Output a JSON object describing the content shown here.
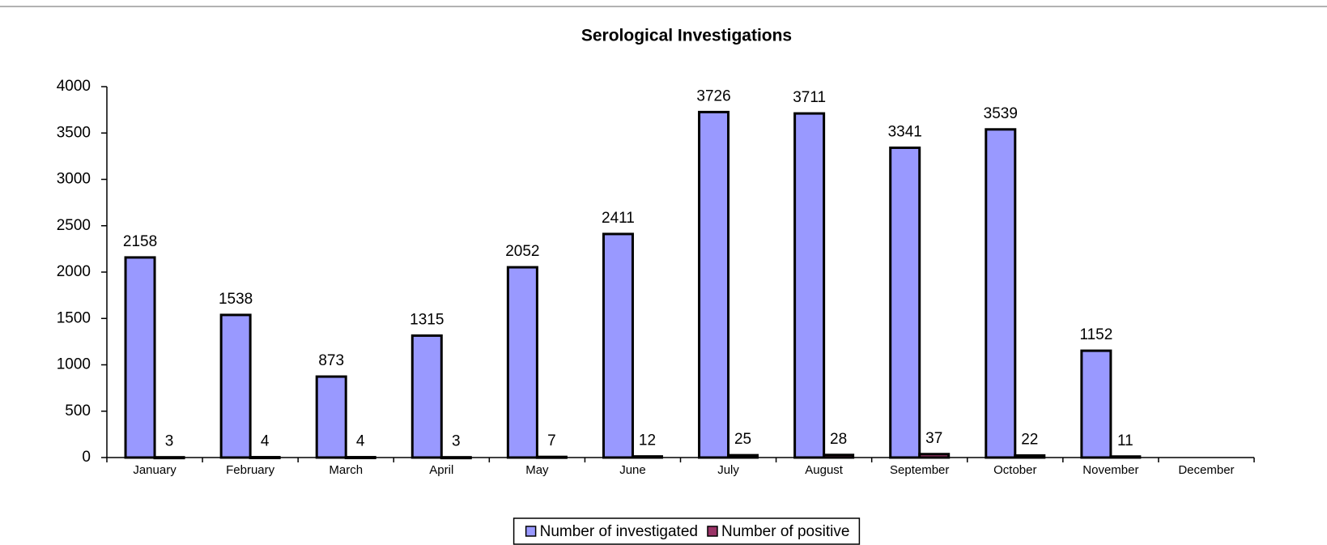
{
  "chart_data": {
    "type": "bar",
    "title": "Serological Investigations",
    "categories": [
      "January",
      "February",
      "March",
      "April",
      "May",
      "June",
      "July",
      "August",
      "September",
      "October",
      "November",
      "December"
    ],
    "series": [
      {
        "name": "Number of investigated",
        "color": "#9999ff",
        "values": [
          2158,
          1538,
          873,
          1315,
          2052,
          2411,
          3726,
          3711,
          3341,
          3539,
          1152,
          null
        ]
      },
      {
        "name": "Number of positive",
        "color": "#993366",
        "values": [
          3,
          4,
          4,
          3,
          7,
          12,
          25,
          28,
          37,
          22,
          11,
          null
        ]
      }
    ],
    "ylim": [
      0,
      4000
    ],
    "yticks": [
      0,
      500,
      1000,
      1500,
      2000,
      2500,
      3000,
      3500,
      4000
    ],
    "grid": false,
    "legend": "bottom"
  }
}
